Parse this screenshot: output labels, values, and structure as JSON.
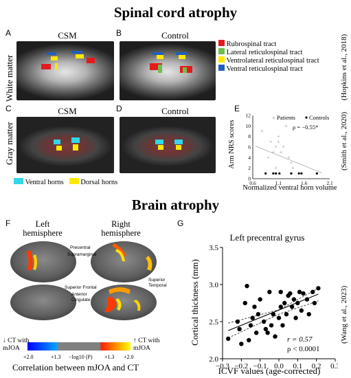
{
  "titles": {
    "spinal": "Spinal cord atrophy",
    "brain": "Brain atrophy"
  },
  "panels": {
    "A": {
      "letter": "A",
      "title": "CSM"
    },
    "B": {
      "letter": "B",
      "title": "Control"
    },
    "C": {
      "letter": "C",
      "title": "CSM"
    },
    "D": {
      "letter": "D",
      "title": "Control"
    },
    "E": {
      "letter": "E"
    },
    "F": {
      "letter": "F"
    },
    "G": {
      "letter": "G"
    }
  },
  "row_labels": {
    "white_matter": "White matter",
    "gray_matter": "Gray matter"
  },
  "tract_legend": [
    {
      "label": "Rubrospinal tract",
      "color": "#e41a1c"
    },
    {
      "label": "Lateral reticulospinal tract",
      "color": "#6cc04a"
    },
    {
      "label": "Ventrolateral reticulospinal tract",
      "color": "#ffe800"
    },
    {
      "label": "Ventral reticulospinal tract",
      "color": "#1f5fbf"
    }
  ],
  "horn_legend": [
    {
      "label": "Ventral horns",
      "color": "#33d6e6"
    },
    {
      "label": "Dorsal horns",
      "color": "#ffe800"
    }
  ],
  "citations": {
    "hopkins": "(Hopkins et al., 2018)",
    "smith": "(Smith et al., 2020)",
    "wang": "(Wang et al., 2023)"
  },
  "brain_labels": {
    "left_hemisphere": "Left\nhemisphere",
    "right_hemisphere": "Right\nhemisphere",
    "precentral": "Precentral",
    "supramarginal": "Supramarginal",
    "superior_frontal": "Superior Frontal",
    "anterior_cingulate": "Anterior\nCingulate",
    "superior_temporal": "Superior\nTemporal"
  },
  "colorbar": {
    "left_label": "CT with\nmJOA",
    "right_label": "CT with\nmJOA",
    "ticks": [
      "+2.0",
      "+1.3",
      "−log10 (P)",
      "+1.3",
      "+2.0"
    ],
    "caption": "Correlation between mJOA and CT",
    "colors": [
      "#0000ff",
      "#00a0ff",
      "#808080",
      "#ff2000",
      "#ffff00"
    ]
  },
  "chart_data": [
    {
      "id": "E",
      "type": "scatter",
      "xlabel": "Normalized ventral horn volume",
      "ylabel": "Arm NRS scores",
      "xlim": [
        0.6,
        2.1
      ],
      "ylim": [
        0,
        12
      ],
      "xticks": [
        "0.6",
        "1.1",
        "1.6",
        "2.1"
      ],
      "yticks": [
        "0",
        "2",
        "4",
        "6",
        "8",
        "10",
        "12"
      ],
      "legend": {
        "patients": "Patients",
        "controls": "Controls",
        "placement": "top-right"
      },
      "annotation": "ρ = −0.55*",
      "series": [
        {
          "name": "Patients",
          "marker": "+",
          "color": "#999999",
          "points": [
            [
              0.78,
              9
            ],
            [
              0.95,
              7
            ],
            [
              1.0,
              5
            ],
            [
              1.05,
              6
            ],
            [
              1.1,
              7
            ],
            [
              1.15,
              5
            ],
            [
              1.2,
              6
            ],
            [
              1.25,
              10
            ],
            [
              1.3,
              4
            ],
            [
              1.35,
              3
            ],
            [
              1.38,
              2
            ],
            [
              1.1,
              8
            ],
            [
              0.9,
              4
            ],
            [
              1.05,
              2
            ]
          ]
        },
        {
          "name": "Controls",
          "marker": "dot",
          "color": "#000000",
          "points": [
            [
              0.85,
              1
            ],
            [
              1.05,
              1
            ],
            [
              1.12,
              1
            ],
            [
              1.35,
              1
            ],
            [
              1.5,
              1
            ],
            [
              1.55,
              1
            ],
            [
              1.85,
              1
            ],
            [
              1.0,
              1
            ]
          ]
        }
      ],
      "trendline": {
        "x": [
          0.65,
          1.95
        ],
        "y": [
          6.2,
          1.1
        ]
      }
    },
    {
      "id": "G",
      "type": "scatter",
      "title": "Left precentral gyrus",
      "xlabel": "ICVF values (age-corrected)",
      "ylabel": "Cortical thickness (mm)",
      "xlim": [
        -0.3,
        0.3
      ],
      "ylim": [
        2.0,
        3.5
      ],
      "xticks": [
        "−0.3",
        "−0.2",
        "−0.1",
        "0.0",
        "0.1",
        "0.2",
        "0.3"
      ],
      "yticks": [
        "2.0",
        "2.5",
        "3.0",
        "3.5"
      ],
      "annotation_r": "r = 0.57",
      "annotation_p": "ρ < 0.0001",
      "points": [
        [
          -0.27,
          2.27
        ],
        [
          -0.22,
          2.5
        ],
        [
          -0.21,
          2.4
        ],
        [
          -0.2,
          2.2
        ],
        [
          -0.18,
          2.75
        ],
        [
          -0.17,
          2.98
        ],
        [
          -0.15,
          2.45
        ],
        [
          -0.14,
          2.55
        ],
        [
          -0.12,
          2.35
        ],
        [
          -0.11,
          2.6
        ],
        [
          -0.1,
          2.8
        ],
        [
          -0.08,
          2.5
        ],
        [
          -0.07,
          2.4
        ],
        [
          -0.06,
          2.35
        ],
        [
          -0.05,
          2.9
        ],
        [
          -0.04,
          2.45
        ],
        [
          -0.03,
          2.6
        ],
        [
          -0.02,
          2.3
        ],
        [
          0.0,
          2.55
        ],
        [
          0.01,
          2.9
        ],
        [
          0.01,
          2.7
        ],
        [
          0.02,
          2.45
        ],
        [
          0.03,
          2.75
        ],
        [
          0.04,
          2.6
        ],
        [
          0.05,
          2.85
        ],
        [
          0.06,
          2.88
        ],
        [
          0.07,
          2.7
        ],
        [
          0.08,
          2.8
        ],
        [
          0.09,
          2.55
        ],
        [
          0.1,
          2.75
        ],
        [
          0.11,
          2.9
        ],
        [
          0.12,
          2.65
        ],
        [
          0.13,
          2.88
        ],
        [
          0.15,
          2.8
        ],
        [
          0.16,
          2.6
        ],
        [
          0.18,
          2.9
        ],
        [
          0.19,
          2.75
        ],
        [
          0.21,
          2.95
        ],
        [
          -0.16,
          2.25
        ],
        [
          -0.13,
          2.7
        ]
      ],
      "fit": {
        "x": [
          -0.27,
          0.21
        ],
        "y": [
          2.38,
          2.87
        ]
      },
      "ci_upper": {
        "x": [
          -0.27,
          0.0,
          0.21
        ],
        "y": [
          2.48,
          2.66,
          2.95
        ]
      },
      "ci_lower": {
        "x": [
          -0.27,
          0.0,
          0.21
        ],
        "y": [
          2.28,
          2.6,
          2.78
        ]
      }
    }
  ]
}
